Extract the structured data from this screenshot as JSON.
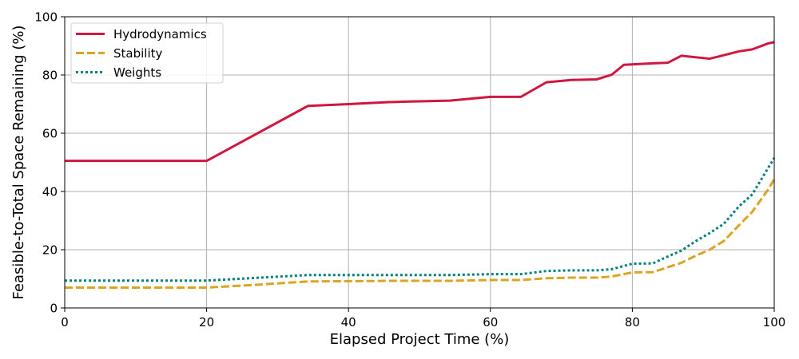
{
  "chart_data": {
    "type": "line",
    "title": "",
    "xlabel": "Elapsed Project Time (%)",
    "ylabel": "Feasible-to-Total Space Remaining (%)",
    "xlim": [
      0,
      100
    ],
    "ylim": [
      0,
      100
    ],
    "xticks": [
      0,
      20,
      40,
      60,
      80,
      100
    ],
    "yticks": [
      0,
      20,
      40,
      60,
      80,
      100
    ],
    "grid": true,
    "legend_position": "top-left",
    "series": [
      {
        "name": "Hydrodynamics",
        "color": "#d0173f",
        "style": "solid",
        "x": [
          0,
          20,
          34.3,
          40,
          45.7,
          54.3,
          60,
          64.3,
          67.9,
          71.4,
          75,
          77.1,
          78.8,
          82.9,
          85,
          86.9,
          90.9,
          92.9,
          95,
          96.9,
          99.1,
          100
        ],
        "y": [
          50.5,
          50.5,
          69.4,
          70,
          70.7,
          71.2,
          72.5,
          72.5,
          77.5,
          78.3,
          78.5,
          80.1,
          83.5,
          84,
          84.2,
          86.6,
          85.6,
          86.8,
          88.1,
          88.8,
          90.8,
          91.3
        ]
      },
      {
        "name": "Stability",
        "color": "#daa520",
        "style": "dashed",
        "x": [
          0,
          20,
          26,
          34.3,
          40,
          45.7,
          54.3,
          60,
          64.3,
          67.9,
          71.4,
          75,
          77.1,
          80,
          82.9,
          84.3,
          86.9,
          88.9,
          90.9,
          92.9,
          95,
          96.9,
          99.1,
          100
        ],
        "y": [
          7,
          7,
          7.8,
          9.1,
          9.2,
          9.3,
          9.3,
          9.6,
          9.6,
          10.2,
          10.4,
          10.4,
          10.8,
          12.2,
          12.3,
          13.4,
          15.5,
          17.9,
          20,
          23,
          28.3,
          33,
          40.5,
          44.2
        ]
      },
      {
        "name": "Weights",
        "color": "#008080",
        "style": "dotted",
        "x": [
          0,
          20,
          26,
          34.3,
          40,
          45.7,
          54.3,
          60,
          64.3,
          67.9,
          71.4,
          75,
          77.1,
          80,
          82.9,
          84.3,
          86.9,
          88.9,
          90.9,
          92.9,
          95,
          96.9,
          99.1,
          100
        ],
        "y": [
          9.4,
          9.4,
          10.2,
          11.3,
          11.3,
          11.3,
          11.3,
          11.6,
          11.6,
          12.7,
          12.9,
          12.9,
          13.3,
          15.2,
          15.3,
          16.9,
          19.7,
          22.9,
          25.7,
          28.9,
          34.8,
          39,
          47.9,
          51.5
        ]
      }
    ]
  }
}
